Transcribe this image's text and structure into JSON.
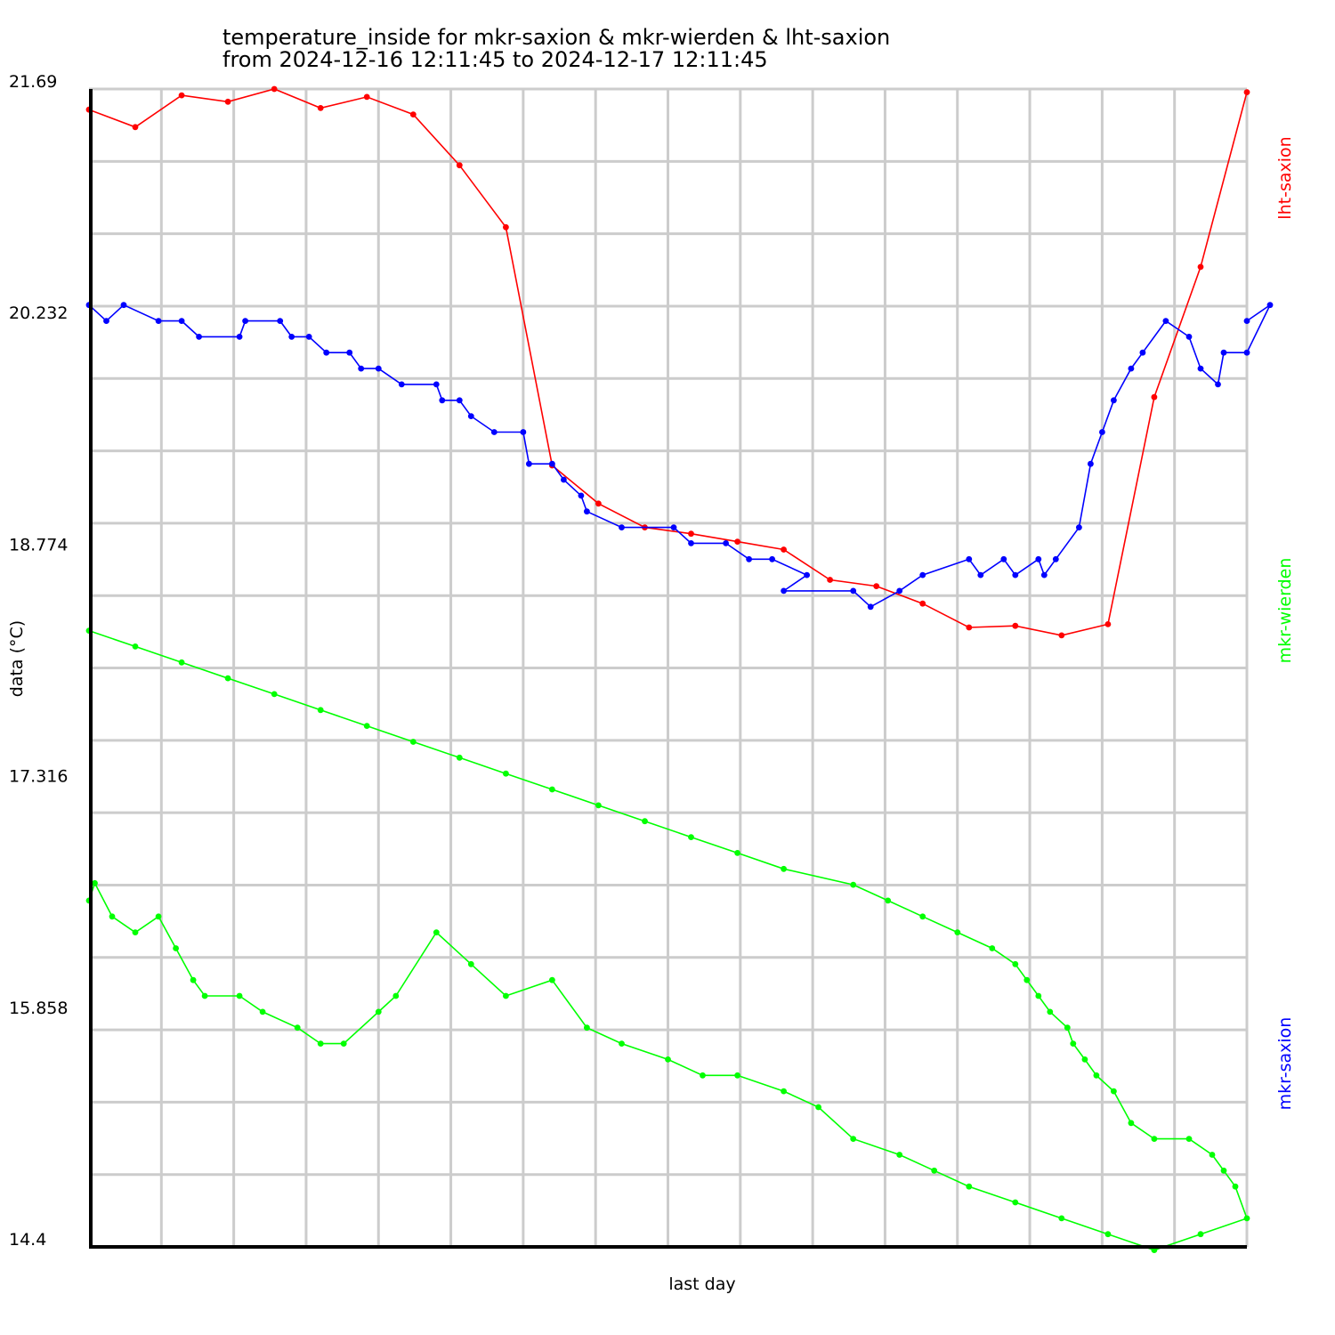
{
  "chart_data": {
    "type": "line",
    "title": "temperature_inside for mkr-saxion & mkr-wierden & lht-saxion",
    "subtitle": "from 2024-12-16 12:11:45 to 2024-12-17 12:11:45",
    "xlabel": "last day",
    "ylabel": "data (°C)",
    "ylim": [
      14.4,
      21.69
    ],
    "yticks": [
      "21.69",
      "20.232",
      "18.774",
      "17.316",
      "15.858",
      "14.4"
    ],
    "grid": true,
    "legend_placement": "right",
    "x_note": "x is the fraction of the last day elapsed (0 = 2024-12-16 12:11:45, 1 = 2024-12-17 12:11:45)",
    "series": [
      {
        "name": "lht-saxion",
        "color": "#ff0000",
        "points": [
          [
            0.0,
            21.56
          ],
          [
            0.04,
            21.45
          ],
          [
            0.08,
            21.65
          ],
          [
            0.12,
            21.61
          ],
          [
            0.16,
            21.69
          ],
          [
            0.2,
            21.57
          ],
          [
            0.24,
            21.64
          ],
          [
            0.28,
            21.53
          ],
          [
            0.32,
            21.21
          ],
          [
            0.36,
            20.82
          ],
          [
            0.4,
            19.32
          ],
          [
            0.44,
            19.08
          ],
          [
            0.48,
            18.93
          ],
          [
            0.52,
            18.89
          ],
          [
            0.56,
            18.84
          ],
          [
            0.6,
            18.79
          ],
          [
            0.64,
            18.6
          ],
          [
            0.68,
            18.56
          ],
          [
            0.72,
            18.45
          ],
          [
            0.76,
            18.3
          ],
          [
            0.8,
            18.31
          ],
          [
            0.84,
            18.25
          ],
          [
            0.88,
            18.32
          ],
          [
            0.92,
            19.75
          ],
          [
            0.96,
            20.57
          ],
          [
            1.0,
            21.67
          ]
        ]
      },
      {
        "name": "mkr-saxion",
        "color": "#0000ff",
        "points": [
          [
            0.0,
            20.33
          ],
          [
            0.015,
            20.23
          ],
          [
            0.03,
            20.33
          ],
          [
            0.06,
            20.23
          ],
          [
            0.08,
            20.23
          ],
          [
            0.095,
            20.13
          ],
          [
            0.13,
            20.13
          ],
          [
            0.135,
            20.23
          ],
          [
            0.165,
            20.23
          ],
          [
            0.175,
            20.13
          ],
          [
            0.19,
            20.13
          ],
          [
            0.205,
            20.03
          ],
          [
            0.225,
            20.03
          ],
          [
            0.235,
            19.93
          ],
          [
            0.25,
            19.93
          ],
          [
            0.27,
            19.83
          ],
          [
            0.3,
            19.83
          ],
          [
            0.305,
            19.73
          ],
          [
            0.32,
            19.73
          ],
          [
            0.33,
            19.63
          ],
          [
            0.35,
            19.53
          ],
          [
            0.375,
            19.53
          ],
          [
            0.38,
            19.33
          ],
          [
            0.4,
            19.33
          ],
          [
            0.41,
            19.23
          ],
          [
            0.425,
            19.13
          ],
          [
            0.43,
            19.03
          ],
          [
            0.46,
            18.93
          ],
          [
            0.505,
            18.93
          ],
          [
            0.52,
            18.83
          ],
          [
            0.55,
            18.83
          ],
          [
            0.57,
            18.73
          ],
          [
            0.59,
            18.73
          ],
          [
            0.62,
            18.63
          ],
          [
            0.6,
            18.53
          ],
          [
            0.66,
            18.53
          ],
          [
            0.675,
            18.43
          ],
          [
            0.7,
            18.53
          ],
          [
            0.72,
            18.63
          ],
          [
            0.76,
            18.73
          ],
          [
            0.77,
            18.63
          ],
          [
            0.79,
            18.73
          ],
          [
            0.8,
            18.63
          ],
          [
            0.82,
            18.73
          ],
          [
            0.825,
            18.63
          ],
          [
            0.835,
            18.73
          ],
          [
            0.855,
            18.93
          ],
          [
            0.865,
            19.33
          ],
          [
            0.875,
            19.53
          ],
          [
            0.885,
            19.73
          ],
          [
            0.9,
            19.93
          ],
          [
            0.91,
            20.03
          ],
          [
            0.93,
            20.23
          ],
          [
            0.95,
            20.13
          ],
          [
            0.96,
            19.93
          ],
          [
            0.975,
            19.83
          ],
          [
            0.98,
            20.03
          ],
          [
            1.0,
            20.03
          ],
          [
            1.02,
            20.33
          ],
          [
            1.0,
            20.23
          ]
        ]
      },
      {
        "name": "mkr-wierden",
        "color": "#00ff00",
        "points": [
          [
            0.0,
            16.58
          ],
          [
            0.005,
            16.69
          ],
          [
            0.02,
            16.48
          ],
          [
            0.04,
            16.38
          ],
          [
            0.06,
            16.48
          ],
          [
            0.075,
            16.28
          ],
          [
            0.09,
            16.08
          ],
          [
            0.1,
            15.98
          ],
          [
            0.13,
            15.98
          ],
          [
            0.15,
            15.88
          ],
          [
            0.18,
            15.78
          ],
          [
            0.2,
            15.68
          ],
          [
            0.22,
            15.68
          ],
          [
            0.25,
            15.88
          ],
          [
            0.265,
            15.98
          ],
          [
            0.3,
            16.38
          ],
          [
            0.33,
            16.18
          ],
          [
            0.36,
            15.98
          ],
          [
            0.4,
            16.08
          ],
          [
            0.43,
            15.78
          ],
          [
            0.46,
            15.68
          ],
          [
            0.5,
            15.58
          ],
          [
            0.53,
            15.48
          ],
          [
            0.56,
            15.48
          ],
          [
            0.6,
            15.38
          ],
          [
            0.63,
            15.28
          ],
          [
            0.66,
            15.08
          ],
          [
            0.7,
            14.98
          ],
          [
            0.73,
            14.88
          ],
          [
            0.76,
            14.78
          ],
          [
            0.8,
            14.68
          ],
          [
            0.84,
            14.58
          ],
          [
            0.88,
            14.48
          ],
          [
            0.92,
            14.38
          ],
          [
            0.96,
            14.48
          ],
          [
            1.0,
            14.58
          ],
          [
            0.99,
            14.78
          ],
          [
            0.98,
            14.88
          ],
          [
            0.97,
            14.98
          ],
          [
            0.95,
            15.08
          ],
          [
            0.92,
            15.08
          ],
          [
            0.9,
            15.18
          ],
          [
            0.885,
            15.38
          ],
          [
            0.87,
            15.48
          ],
          [
            0.86,
            15.58
          ],
          [
            0.85,
            15.68
          ],
          [
            0.845,
            15.78
          ],
          [
            0.83,
            15.88
          ],
          [
            0.82,
            15.98
          ],
          [
            0.81,
            16.08
          ],
          [
            0.8,
            16.18
          ],
          [
            0.78,
            16.28
          ],
          [
            0.75,
            16.38
          ],
          [
            0.72,
            16.48
          ],
          [
            0.69,
            16.58
          ],
          [
            0.66,
            16.68
          ],
          [
            0.6,
            16.78
          ],
          [
            0.56,
            16.88
          ],
          [
            0.52,
            16.98
          ],
          [
            0.48,
            17.08
          ],
          [
            0.44,
            17.18
          ],
          [
            0.4,
            17.28
          ],
          [
            0.36,
            17.38
          ],
          [
            0.32,
            17.48
          ],
          [
            0.28,
            17.58
          ],
          [
            0.24,
            17.68
          ],
          [
            0.2,
            17.78
          ],
          [
            0.16,
            17.88
          ],
          [
            0.12,
            17.98
          ],
          [
            0.08,
            18.08
          ],
          [
            0.04,
            18.18
          ],
          [
            0.0,
            18.28
          ]
        ]
      }
    ]
  }
}
